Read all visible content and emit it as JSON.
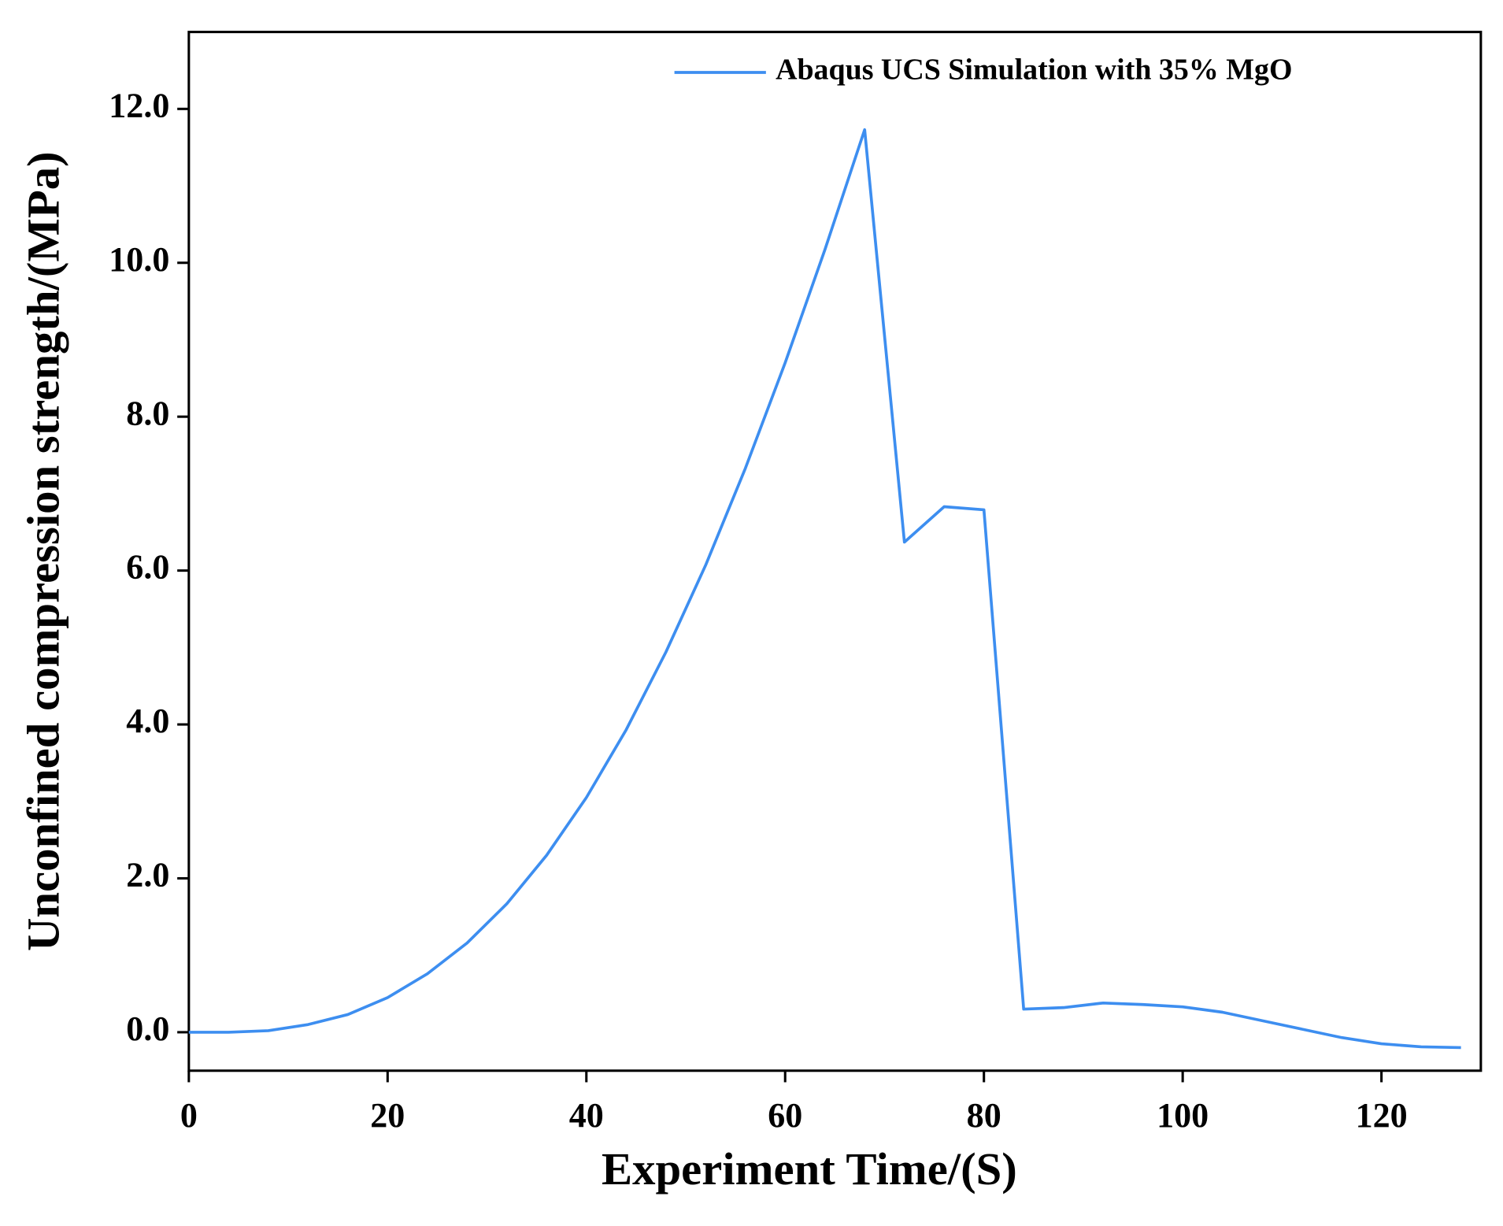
{
  "chart_data": {
    "type": "line",
    "xlabel": "Experiment Time/(S)",
    "ylabel": "Unconfined compression strength/(MPa)",
    "x": [
      0,
      4,
      8,
      12,
      16,
      20,
      24,
      28,
      32,
      36,
      40,
      44,
      48,
      52,
      56,
      60,
      64,
      68,
      72,
      76,
      80,
      84,
      88,
      92,
      96,
      100,
      104,
      108,
      112,
      116,
      120,
      124,
      128
    ],
    "series": [
      {
        "name": "Abaqus UCS Simulation with 35% MgO",
        "color": "#3d8ef0",
        "values": [
          0,
          0,
          0.02,
          0.1,
          0.23,
          0.45,
          0.76,
          1.16,
          1.67,
          2.3,
          3.05,
          3.93,
          4.94,
          6.07,
          7.33,
          8.7,
          10.17,
          11.73,
          6.37,
          6.83,
          6.79,
          0.3,
          0.32,
          0.38,
          0.36,
          0.33,
          0.26,
          0.15,
          0.04,
          -0.07,
          -0.15,
          -0.19,
          -0.2
        ]
      }
    ],
    "xlim": [
      0,
      130
    ],
    "xticks": [
      0,
      20,
      40,
      60,
      80,
      100,
      120
    ],
    "ylim": [
      -0.5,
      13
    ],
    "yticks": [
      {
        "value": 0,
        "label": "0.0"
      },
      {
        "value": 2,
        "label": "2.0"
      },
      {
        "value": 4,
        "label": "4.0"
      },
      {
        "value": 6,
        "label": "6.0"
      },
      {
        "value": 8,
        "label": "8.0"
      },
      {
        "value": 10,
        "label": "10.0"
      },
      {
        "value": 12,
        "label": "12.0"
      }
    ],
    "grid": false,
    "legend": "upper right"
  }
}
